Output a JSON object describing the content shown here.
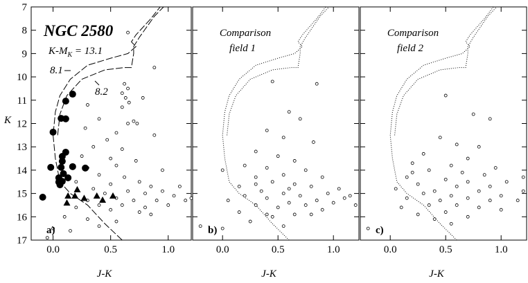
{
  "chart_data": [
    {
      "type": "scatter",
      "title": "NGC 2580",
      "annotation": [
        "K-M",
        "K",
        " = 13.1"
      ],
      "panel_label": "a)",
      "isochrone_labels": [
        "8.1",
        "8.2"
      ],
      "x_label": "J-K",
      "y_label": "K",
      "xlim": [
        -0.19,
        1.2
      ],
      "ylim": [
        17,
        7
      ],
      "xticks": [
        {
          "value": 0,
          "label": "0.0"
        },
        {
          "value": 0.5,
          "label": "0.5"
        },
        {
          "value": 1,
          "label": "1.0"
        }
      ],
      "yticks": [
        7,
        8,
        9,
        10,
        11,
        12,
        13,
        14,
        15,
        16,
        17
      ],
      "series": [
        {
          "marker": "dashed",
          "x": [
            0.6,
            0.45,
            0.3,
            0.15,
            0.06,
            0.02,
            0.0,
            0.02,
            0.06,
            0.15,
            0.3,
            0.5,
            0.65,
            0.72,
            0.68,
            0.72,
            0.85,
            0.93
          ],
          "values": [
            17,
            16.3,
            15.5,
            15,
            14.5,
            13.5,
            12.5,
            11.5,
            10.8,
            10.1,
            9.5,
            9.2,
            9.0,
            8.7,
            8.5,
            8.2,
            7.5,
            7
          ]
        },
        {
          "marker": "dashed",
          "x": [
            0.04,
            0.06,
            0.12,
            0.25,
            0.45,
            0.62,
            0.68,
            0.7,
            0.7,
            0.75,
            0.88,
            0.96
          ],
          "values": [
            12.5,
            11.6,
            10.8,
            10.1,
            9.7,
            9.6,
            9.6,
            9.0,
            8.7,
            8.3,
            7.4,
            7
          ]
        },
        {
          "marker": "open-circle",
          "x": [
            0.65,
            0.88,
            0.62,
            0.65,
            0.6,
            0.63,
            0.66,
            0.6,
            0.7,
            0.73,
            0.78,
            0.3,
            0.4,
            0.28,
            0.55,
            0.88,
            0.47,
            0.35,
            0.6,
            0.25,
            0.5,
            0.72,
            0.55,
            0.3,
            0.95,
            0.4,
            0.62,
            0.2,
            0.75,
            0.5,
            0.85,
            1.1,
            0.35,
            0.65,
            0.95,
            0.45,
            0.8,
            1.05,
            0.55,
            0.3,
            0.7,
            0.9,
            1.15,
            0.6,
            0.4,
            0.8,
            1.0,
            0.2,
            0.5,
            0.75,
            0.1,
            0.3,
            0.55,
            0.0,
            -0.05,
            0.15,
            0.4,
            0.85,
            1.2,
            0.65
          ],
          "values": [
            8.1,
            9.6,
            10.3,
            10.5,
            10.7,
            10.9,
            11.1,
            11.3,
            11.9,
            12.0,
            10.9,
            11.2,
            11.8,
            12.2,
            12.4,
            12.5,
            12.7,
            13.0,
            13.1,
            13.4,
            13.5,
            13.6,
            13.8,
            13.9,
            14.0,
            14.2,
            14.3,
            14.5,
            14.5,
            14.6,
            14.7,
            14.7,
            14.8,
            14.9,
            14.9,
            15.0,
            15.0,
            15.1,
            15.2,
            15.3,
            15.3,
            15.3,
            15.3,
            15.5,
            15.5,
            15.6,
            15.5,
            15.6,
            15.7,
            15.8,
            16.0,
            16.1,
            16.2,
            16.5,
            16.9,
            16.6,
            16.4,
            15.9,
            15.2,
            12.0
          ]
        },
        {
          "marker": "filled-circle",
          "x": [
            0.17,
            0.11,
            0.11,
            0.07,
            0.0,
            0.08,
            0.11,
            0.08,
            0.07,
            0.17,
            -0.02,
            0.09,
            0.05,
            0.13,
            0.28,
            0.05,
            0.08,
            -0.09,
            0.06
          ],
          "values": [
            10.74,
            11.04,
            11.8,
            11.78,
            12.37,
            13.41,
            13.23,
            13.62,
            13.88,
            13.85,
            13.88,
            14.15,
            14.33,
            14.33,
            13.91,
            14.51,
            14.48,
            15.16,
            14.63
          ]
        },
        {
          "marker": "triangle",
          "x": [
            0.13,
            0.19,
            0.12,
            0.38,
            0.43,
            0.52,
            0.27,
            0.21
          ],
          "values": [
            15.1,
            15.1,
            15.4,
            15.1,
            15.28,
            15.1,
            15.2,
            14.83
          ]
        }
      ]
    },
    {
      "type": "scatter",
      "annotation": [
        "Comparison",
        "field 1"
      ],
      "panel_label": "b)",
      "x_label": "J-K",
      "xlim": [
        -0.27,
        1.23
      ],
      "ylim": [
        17,
        7
      ],
      "xticks": [
        {
          "value": 0,
          "label": "0.0"
        },
        {
          "value": 0.5,
          "label": "0.5"
        },
        {
          "value": 1,
          "label": "1.0"
        }
      ],
      "series": [
        {
          "marker": "dotted",
          "x": [
            0.6,
            0.45,
            0.3,
            0.15,
            0.06,
            0.02,
            0.0,
            0.02,
            0.06,
            0.15,
            0.3,
            0.5,
            0.65,
            0.72,
            0.68,
            0.72,
            0.85,
            0.93
          ],
          "values": [
            17,
            16.3,
            15.5,
            15,
            14.5,
            13.5,
            12.5,
            11.5,
            10.8,
            10.1,
            9.5,
            9.2,
            9.0,
            8.7,
            8.5,
            8.2,
            7.5,
            7
          ]
        },
        {
          "marker": "dotted",
          "x": [
            0.04,
            0.06,
            0.12,
            0.25,
            0.45,
            0.62,
            0.68,
            0.7,
            0.7,
            0.75,
            0.88,
            0.96
          ],
          "values": [
            12.5,
            11.6,
            10.8,
            10.1,
            9.7,
            9.6,
            9.6,
            9.0,
            8.7,
            8.3,
            7.4,
            7
          ]
        },
        {
          "marker": "open-circle",
          "x": [
            0.45,
            0.85,
            0.6,
            0.7,
            0.4,
            0.55,
            0.82,
            0.3,
            0.5,
            0.65,
            0.2,
            0.4,
            0.75,
            0.0,
            0.55,
            0.3,
            0.9,
            0.45,
            0.65,
            0.15,
            0.8,
            1.05,
            0.35,
            0.55,
            0.95,
            0.2,
            0.7,
            1.15,
            0.4,
            0.85,
            0.05,
            0.6,
            1.0,
            0.3,
            0.75,
            0.5,
            1.2,
            0.9,
            0.15,
            0.4,
            0.65,
            0.25,
            0.0,
            -0.2,
            0.55,
            0.45,
            1.1,
            0.3,
            0.6,
            0.8
          ],
          "values": [
            10.2,
            10.3,
            11.5,
            11.8,
            12.3,
            12.6,
            12.8,
            13.2,
            13.4,
            13.6,
            13.8,
            13.9,
            14.0,
            14.0,
            14.2,
            14.3,
            14.3,
            14.5,
            14.6,
            14.7,
            14.7,
            14.8,
            14.9,
            15.0,
            15.0,
            15.1,
            15.1,
            15.1,
            15.2,
            15.3,
            15.3,
            15.4,
            15.4,
            15.5,
            15.5,
            15.6,
            15.5,
            15.7,
            15.8,
            15.9,
            15.9,
            16.2,
            16.5,
            16.4,
            16.4,
            16.0,
            15.2,
            14.6,
            14.8,
            15.9
          ]
        }
      ]
    },
    {
      "type": "scatter",
      "annotation": [
        "Comparison",
        "field 2"
      ],
      "panel_label": "c)",
      "x_label": "J-K",
      "xlim": [
        -0.27,
        1.23
      ],
      "ylim": [
        17,
        7
      ],
      "xticks": [
        {
          "value": 0,
          "label": "0.0"
        },
        {
          "value": 0.5,
          "label": "0.5"
        },
        {
          "value": 1,
          "label": "1.0"
        }
      ],
      "series": [
        {
          "marker": "dotted",
          "x": [
            0.6,
            0.45,
            0.3,
            0.15,
            0.06,
            0.02,
            0.0,
            0.02,
            0.06,
            0.15,
            0.3,
            0.5,
            0.65,
            0.72,
            0.68,
            0.72,
            0.85,
            0.93
          ],
          "values": [
            17,
            16.3,
            15.5,
            15,
            14.5,
            13.5,
            12.5,
            11.5,
            10.8,
            10.1,
            9.5,
            9.2,
            9.0,
            8.7,
            8.5,
            8.2,
            7.5,
            7
          ]
        },
        {
          "marker": "dotted",
          "x": [
            0.04,
            0.06,
            0.12,
            0.25,
            0.45,
            0.62,
            0.68,
            0.7,
            0.7,
            0.75,
            0.88,
            0.96
          ],
          "values": [
            12.5,
            11.6,
            10.8,
            10.1,
            9.7,
            9.6,
            9.6,
            9.0,
            8.7,
            8.3,
            7.4,
            7
          ]
        },
        {
          "marker": "open-circle",
          "x": [
            0.5,
            0.75,
            0.9,
            0.45,
            0.6,
            0.8,
            0.3,
            0.7,
            0.2,
            0.55,
            0.95,
            0.35,
            0.85,
            0.15,
            0.5,
            0.7,
            1.05,
            0.25,
            0.6,
            0.9,
            0.05,
            0.4,
            0.8,
            1.2,
            0.3,
            0.55,
            1.0,
            0.15,
            0.7,
            0.45,
            0.9,
            1.15,
            0.35,
            0.6,
            0.8,
            0.1,
            0.5,
            1.0,
            0.25,
            0.7,
            0.4,
            -0.2,
            0.55,
            1.2,
            0.2,
            0.65
          ],
          "values": [
            10.8,
            11.6,
            11.8,
            12.6,
            12.9,
            13.0,
            13.3,
            13.5,
            13.7,
            13.8,
            13.9,
            14.0,
            14.2,
            14.3,
            14.4,
            14.5,
            14.5,
            14.6,
            14.7,
            14.7,
            14.8,
            14.9,
            14.9,
            14.9,
            15.0,
            15.1,
            15.1,
            15.2,
            15.2,
            15.3,
            15.3,
            15.3,
            15.5,
            15.5,
            15.6,
            15.6,
            15.8,
            15.7,
            15.9,
            16.0,
            16.1,
            16.5,
            16.3,
            14.3,
            14.1,
            14.1
          ]
        }
      ]
    }
  ]
}
